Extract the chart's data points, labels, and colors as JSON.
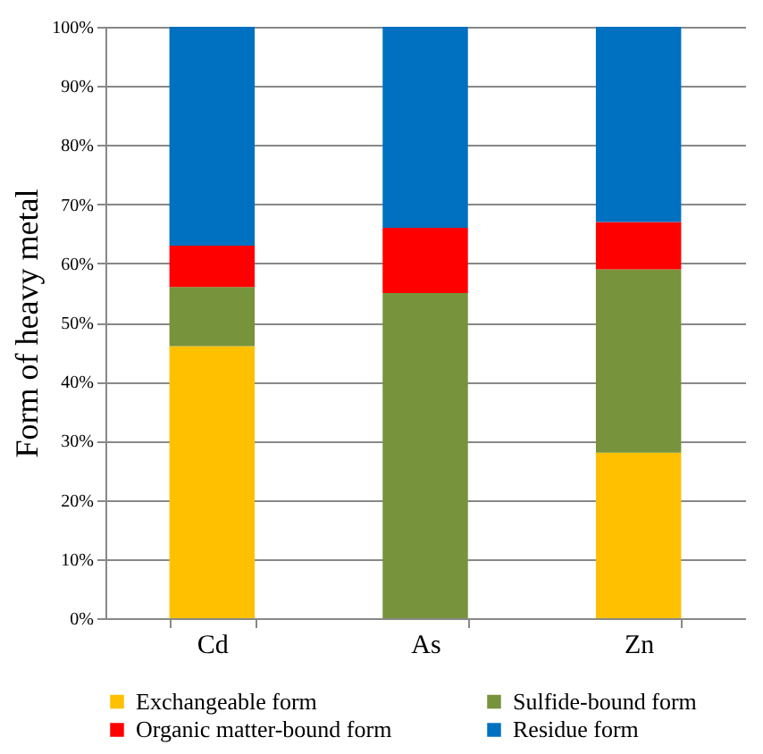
{
  "chart_data": {
    "type": "bar",
    "stacked": true,
    "ylabel": "Form of heavy metal",
    "categories": [
      "Cd",
      "As",
      "Zn"
    ],
    "series": [
      {
        "name": "Exchangeable form",
        "color": "#ffc000",
        "values": [
          46,
          0,
          28
        ]
      },
      {
        "name": "Sulfide-bound form",
        "color": "#77933c",
        "values": [
          10,
          55,
          31
        ]
      },
      {
        "name": "Organic matter-bound form",
        "color": "#ff0000",
        "values": [
          7,
          11,
          8
        ]
      },
      {
        "name": "Residue form",
        "color": "#0070c0",
        "values": [
          37,
          34,
          33
        ]
      }
    ],
    "ylim": [
      0,
      100
    ],
    "yticks": [
      {
        "value": 0,
        "label": "0%"
      },
      {
        "value": 10,
        "label": "10%"
      },
      {
        "value": 20,
        "label": "20%"
      },
      {
        "value": 30,
        "label": "30%"
      },
      {
        "value": 40,
        "label": "40%"
      },
      {
        "value": 50,
        "label": "50%"
      },
      {
        "value": 60,
        "label": "60%"
      },
      {
        "value": 70,
        "label": "70%"
      },
      {
        "value": 80,
        "label": "80%"
      },
      {
        "value": 90,
        "label": "90%"
      },
      {
        "value": 100,
        "label": "100%"
      }
    ],
    "grid": "y",
    "legend": "bottom"
  }
}
